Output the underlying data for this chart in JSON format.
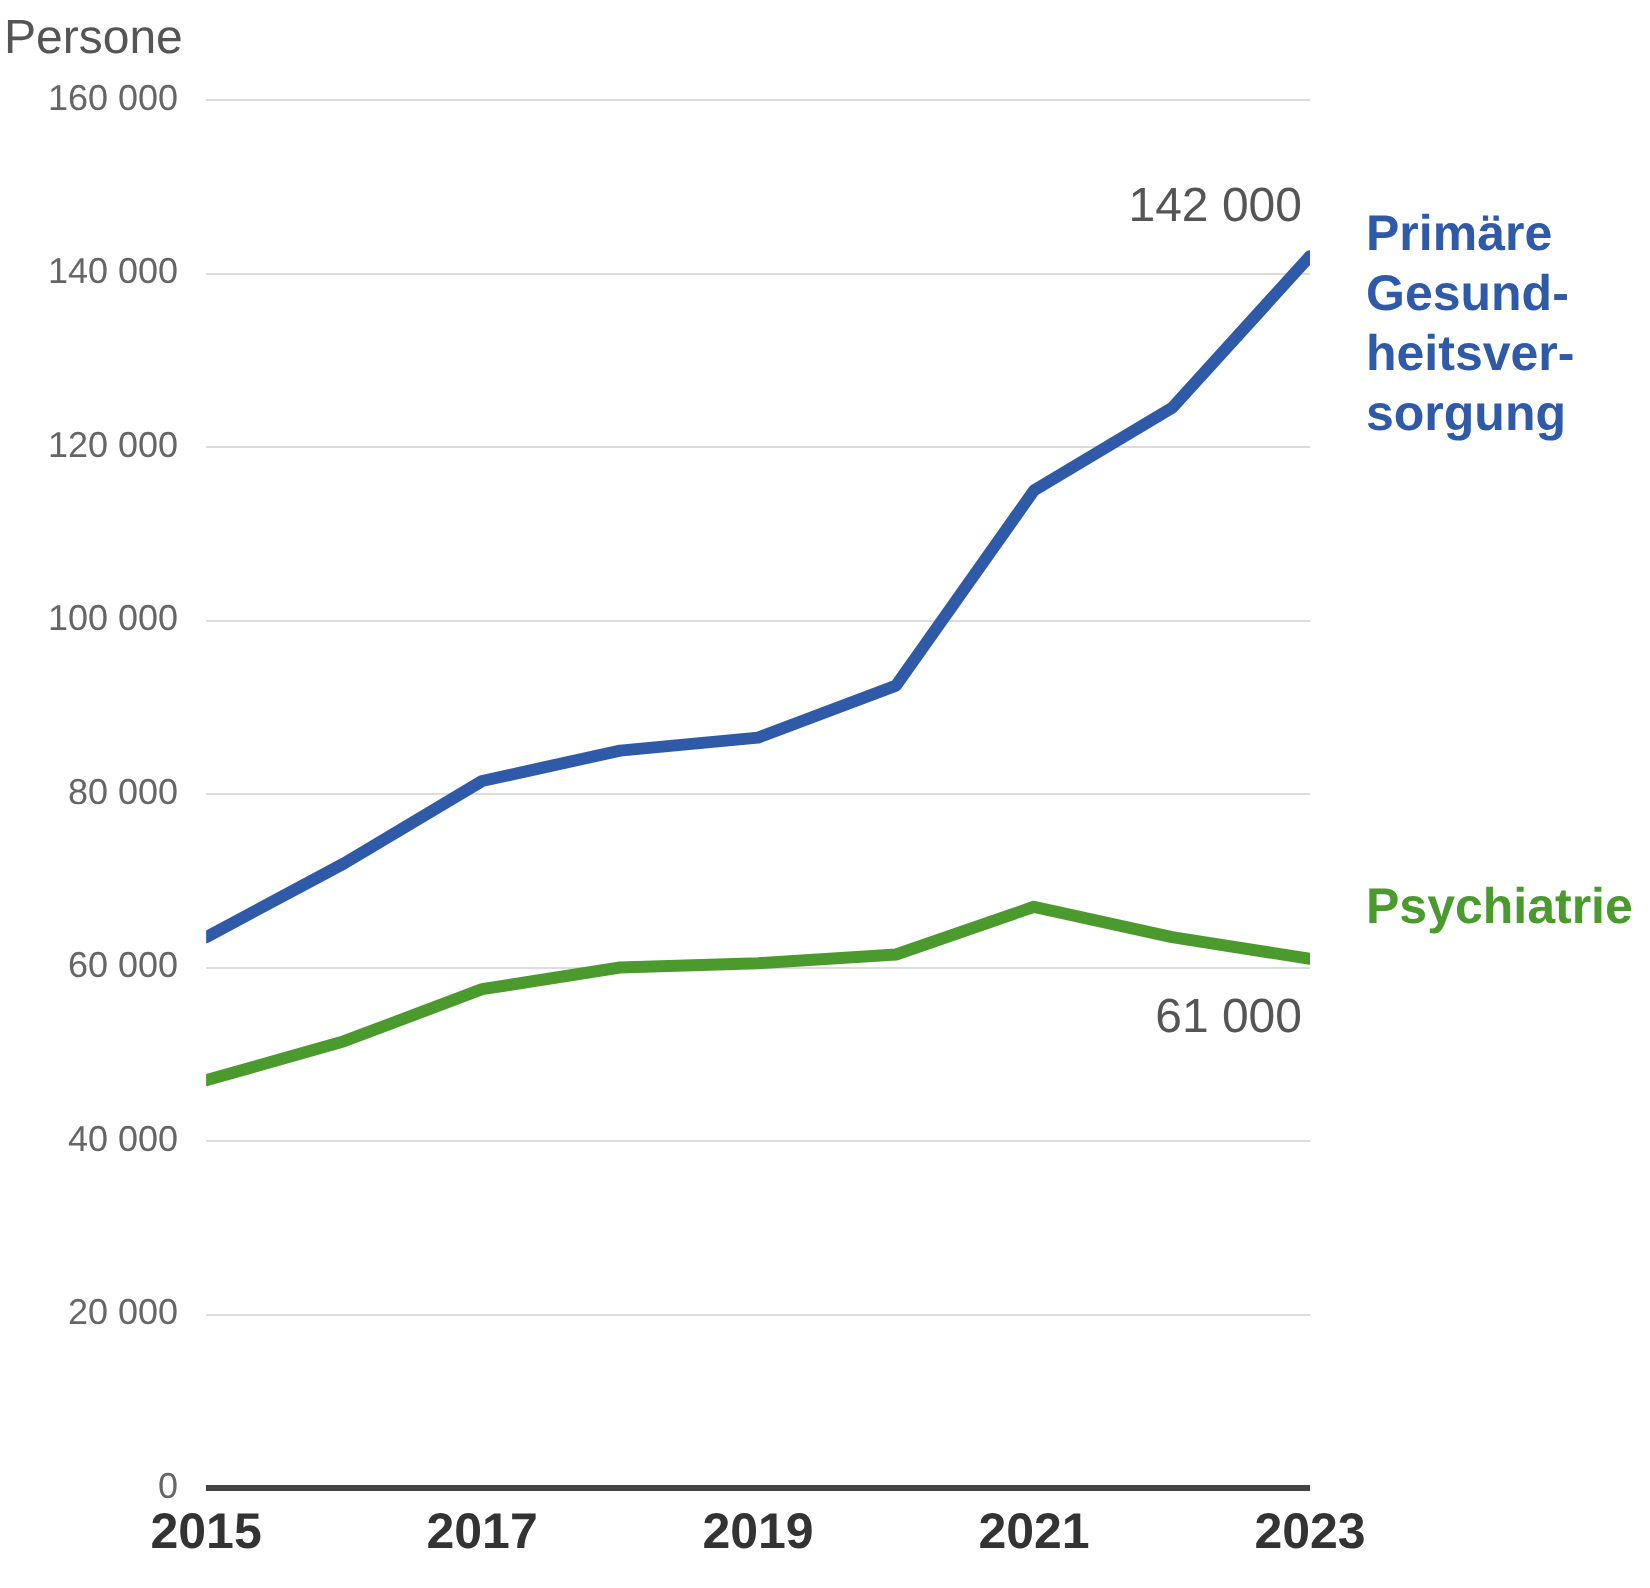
{
  "chart_data": {
    "type": "line",
    "ylabel": "Persone",
    "x": [
      2015,
      2016,
      2017,
      2018,
      2019,
      2020,
      2021,
      2022,
      2023
    ],
    "xlim": [
      2015,
      2023
    ],
    "xticks": [
      2015,
      2017,
      2019,
      2021,
      2023
    ],
    "ylim": [
      0,
      160000
    ],
    "yticks": [
      {
        "value": 0,
        "label": "0"
      },
      {
        "value": 20000,
        "label": "20 000"
      },
      {
        "value": 40000,
        "label": "40 000"
      },
      {
        "value": 60000,
        "label": "60 000"
      },
      {
        "value": 80000,
        "label": "80 000"
      },
      {
        "value": 100000,
        "label": "100 000"
      },
      {
        "value": 120000,
        "label": "120 000"
      },
      {
        "value": 140000,
        "label": "140 000"
      },
      {
        "value": 160000,
        "label": "160 000"
      }
    ],
    "grid": "y",
    "legend": false,
    "marker": "none",
    "line_style": "solid",
    "series": [
      {
        "name": "Primäre Gesund-heitsver-sorgung",
        "color": "#2f5aa8",
        "values": [
          63500,
          72000,
          81500,
          85000,
          86500,
          92500,
          115000,
          124500,
          142000
        ]
      },
      {
        "name": "Psychiatrie",
        "color": "#4a9a2e",
        "values": [
          47000,
          51500,
          57500,
          60000,
          60500,
          61500,
          67000,
          63500,
          61000
        ]
      }
    ],
    "annotations": [
      {
        "text": "142 000",
        "x": 2023,
        "y": 142000
      },
      {
        "text": "61 000",
        "x": 2023,
        "y": 61000
      }
    ]
  }
}
